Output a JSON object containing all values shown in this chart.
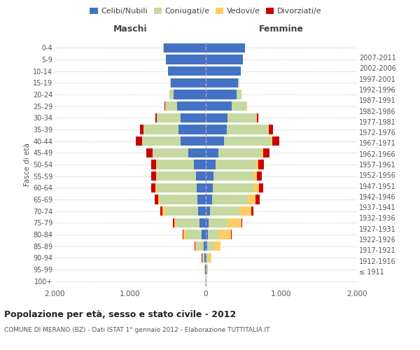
{
  "age_groups": [
    "100+",
    "95-99",
    "90-94",
    "85-89",
    "80-84",
    "75-79",
    "70-74",
    "65-69",
    "60-64",
    "55-59",
    "50-54",
    "45-49",
    "40-44",
    "35-39",
    "30-34",
    "25-29",
    "20-24",
    "15-19",
    "10-14",
    "5-9",
    "0-4"
  ],
  "birth_years": [
    "≤ 1911",
    "1912-1916",
    "1917-1921",
    "1922-1926",
    "1927-1931",
    "1932-1936",
    "1937-1941",
    "1942-1946",
    "1947-1951",
    "1952-1956",
    "1957-1961",
    "1962-1966",
    "1967-1971",
    "1972-1976",
    "1977-1981",
    "1982-1986",
    "1987-1991",
    "1992-1996",
    "1997-2001",
    "2002-2006",
    "2007-2011"
  ],
  "male": {
    "celibi": [
      3,
      5,
      15,
      30,
      60,
      80,
      100,
      110,
      120,
      130,
      160,
      230,
      330,
      360,
      330,
      380,
      430,
      460,
      500,
      530,
      560
    ],
    "coniugati": [
      2,
      10,
      30,
      90,
      200,
      310,
      430,
      500,
      530,
      520,
      490,
      470,
      510,
      460,
      320,
      160,
      50,
      10,
      2,
      1,
      1
    ],
    "vedovi": [
      0,
      2,
      5,
      20,
      40,
      30,
      40,
      20,
      15,
      10,
      5,
      3,
      2,
      2,
      1,
      1,
      1,
      0,
      0,
      0,
      0
    ],
    "divorziati": [
      0,
      0,
      2,
      5,
      10,
      15,
      30,
      50,
      60,
      60,
      70,
      80,
      80,
      50,
      20,
      5,
      2,
      1,
      0,
      0,
      0
    ]
  },
  "female": {
    "nubili": [
      3,
      5,
      10,
      20,
      30,
      40,
      60,
      80,
      90,
      100,
      130,
      170,
      240,
      280,
      290,
      340,
      410,
      430,
      460,
      490,
      520
    ],
    "coniugate": [
      2,
      10,
      30,
      80,
      150,
      250,
      380,
      480,
      540,
      530,
      530,
      560,
      620,
      540,
      380,
      200,
      60,
      10,
      2,
      1,
      1
    ],
    "vedove": [
      1,
      10,
      30,
      90,
      150,
      180,
      160,
      100,
      70,
      50,
      35,
      25,
      20,
      10,
      5,
      2,
      1,
      0,
      0,
      0,
      0
    ],
    "divorziate": [
      0,
      0,
      2,
      5,
      10,
      15,
      30,
      50,
      60,
      60,
      70,
      90,
      90,
      60,
      20,
      5,
      2,
      1,
      0,
      0,
      0
    ]
  },
  "colors": {
    "celibi": "#4472C4",
    "coniugati": "#C5D9A0",
    "vedovi": "#FFCC66",
    "divorziati": "#CC0000"
  },
  "legend_labels": [
    "Celibi/Nubili",
    "Coniugati/e",
    "Vedovi/e",
    "Divorziati/e"
  ],
  "title": "Popolazione per età, sesso e stato civile - 2012",
  "subtitle": "COMUNE DI MERANO (BZ) - Dati ISTAT 1° gennaio 2012 - Elaborazione TUTTITALIA.IT",
  "ylabel_left": "Fasce di età",
  "xlabel_left": "Maschi",
  "xlabel_right": "Femmine",
  "xlim": 2000,
  "bg_color": "#FFFFFF",
  "grid_color": "#CCCCCC",
  "bar_height": 0.8
}
